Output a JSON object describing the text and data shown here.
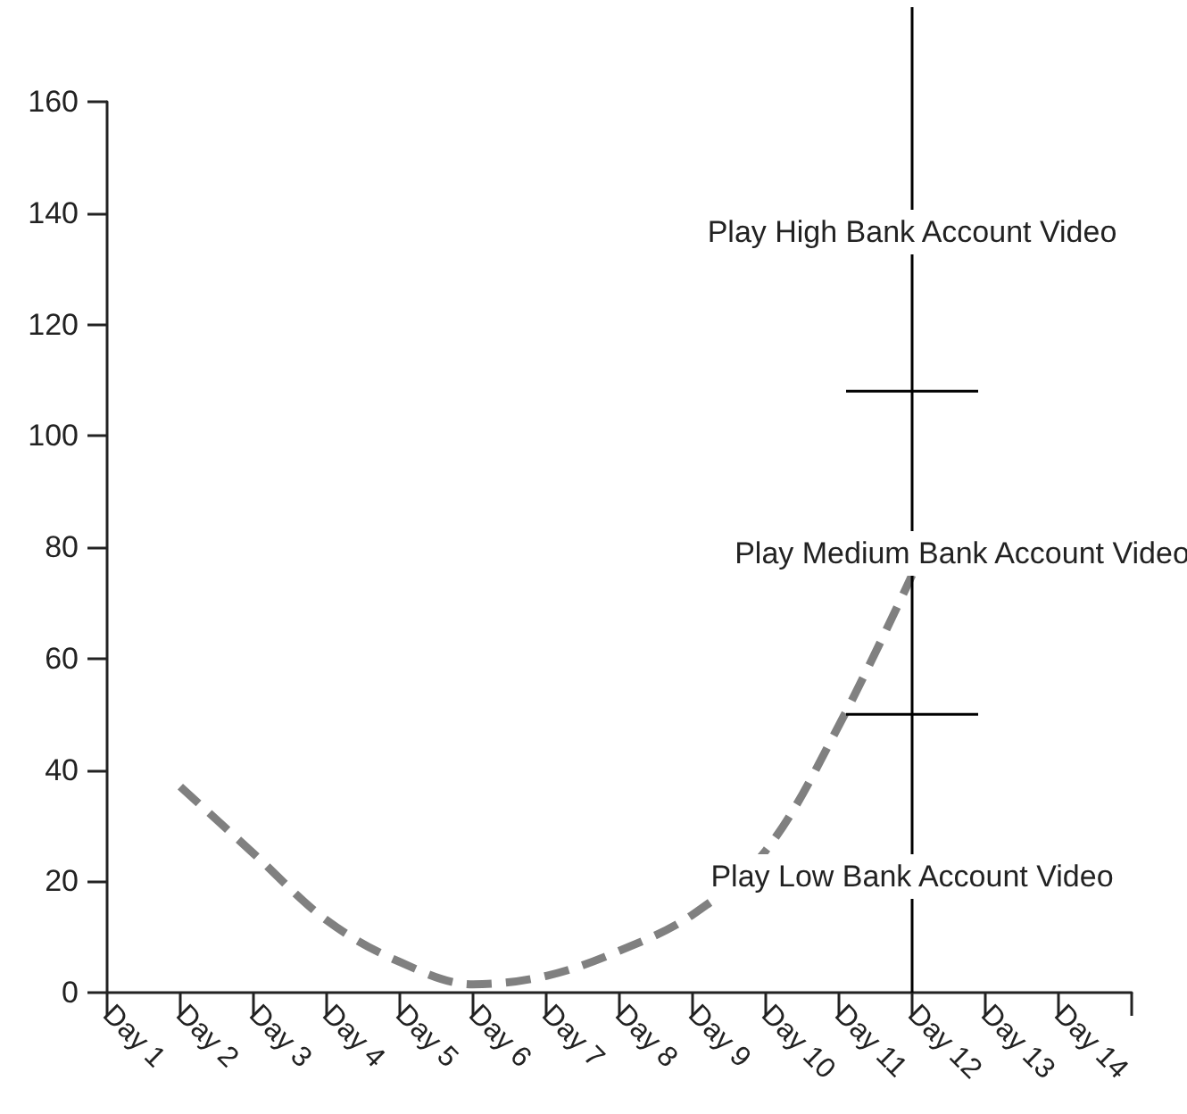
{
  "chart_data": {
    "type": "line",
    "categories": [
      "Day 1",
      "Day 2",
      "Day 3",
      "Day 4",
      "Day 5",
      "Day 6",
      "Day 7",
      "Day 8",
      "Day 9",
      "Day 10",
      "Day 11",
      "Day 12",
      "Day 13",
      "Day 14",
      null
    ],
    "series": [
      {
        "color": "#808080",
        "values": [
          null,
          37,
          25,
          13,
          5.5,
          1.5,
          3,
          7.5,
          14,
          25.5,
          48,
          75,
          null,
          null,
          null
        ]
      }
    ],
    "ylim": [
      0,
      160
    ],
    "yticks": [
      0,
      20,
      40,
      60,
      80,
      100,
      120,
      140,
      160
    ],
    "grid": false,
    "marker": "none",
    "line_style": "dashed",
    "ref_lines": [
      {
        "axis": "x",
        "value": "Day 12",
        "color": "#000000"
      },
      {
        "axis": "y",
        "value": 108,
        "color": "#000000"
      },
      {
        "axis": "y",
        "value": 50,
        "color": "#000000"
      }
    ],
    "annotations": [
      "Play High Bank Account Video",
      "Play Medium Bank Account Video",
      "Play Low Bank Account Video"
    ]
  }
}
